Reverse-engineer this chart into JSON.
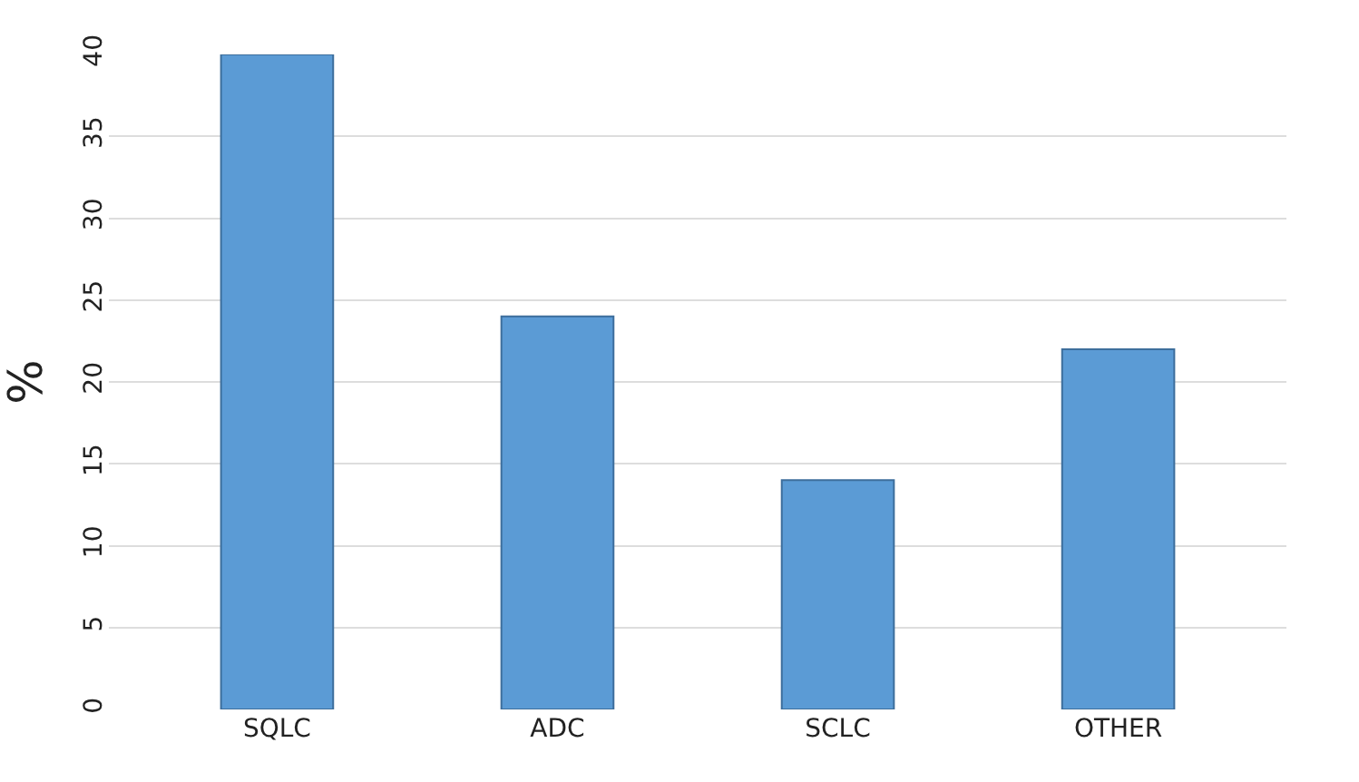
{
  "chart_data": {
    "type": "bar",
    "ylabel": "%",
    "categories": [
      "SQLC",
      "ADC",
      "SCLC",
      "OTHER"
    ],
    "values": [
      40,
      24,
      14,
      22
    ],
    "color": "#5b9bd5",
    "ylim": [
      0,
      40
    ],
    "yticks": [
      0,
      5,
      10,
      15,
      20,
      25,
      30,
      35,
      40
    ],
    "grid": "y"
  }
}
